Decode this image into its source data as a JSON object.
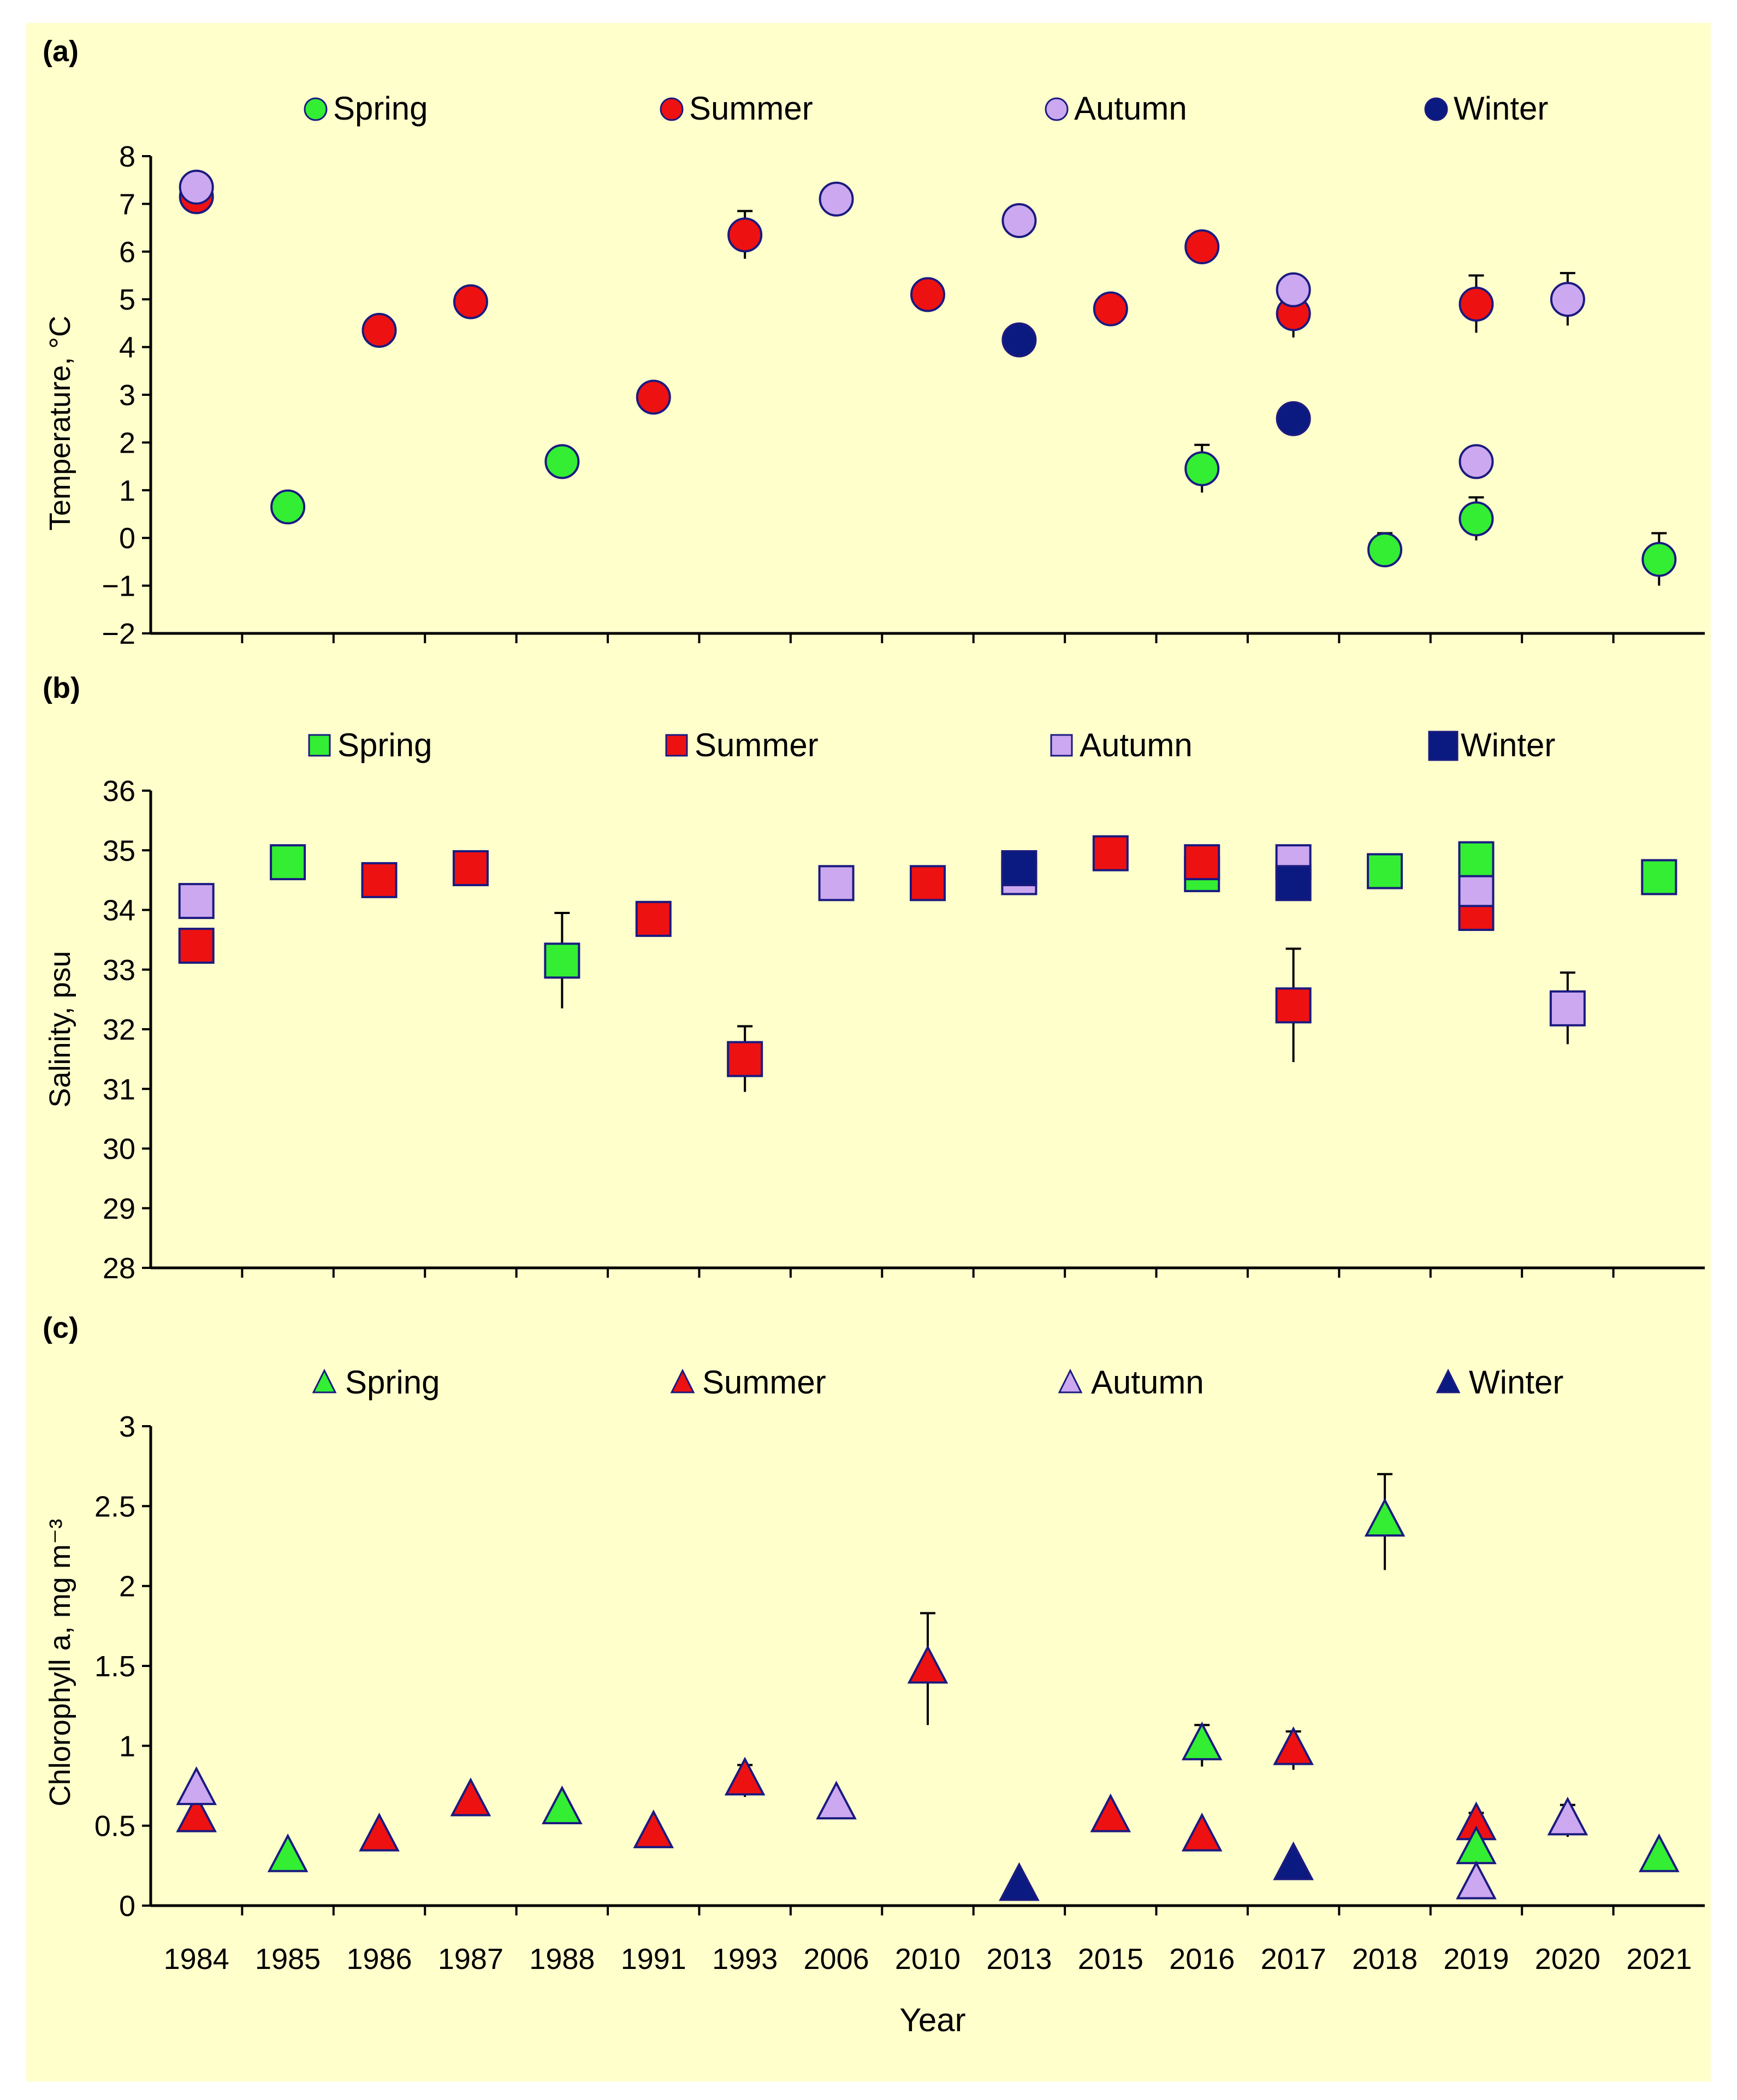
{
  "figure": {
    "background": "#FFFFCC",
    "year_labels": [
      "1984",
      "1985",
      "1986",
      "1987",
      "1988",
      "1991",
      "1993",
      "2006",
      "2010",
      "2013",
      "2015",
      "2016",
      "2017",
      "2018",
      "2019",
      "2020",
      "2021"
    ],
    "x_axis_title": "Year"
  },
  "seasons": {
    "spring": {
      "label": "Spring",
      "color": "#33EE33"
    },
    "summer": {
      "label": "Summer",
      "color": "#EE1111"
    },
    "autumn": {
      "label": "Autumn",
      "color": "#CCA8F0"
    },
    "winter": {
      "label": "Winter",
      "color": "#0A1A80"
    }
  },
  "chart_data": [
    {
      "panel": "(a)",
      "type": "scatter",
      "marker": "circle",
      "ylabel": "Temperature, °C",
      "ylim": [
        -2,
        8
      ],
      "yticks": [
        "−2",
        "−1",
        "0",
        "1",
        "2",
        "3",
        "4",
        "5",
        "6",
        "7",
        "8"
      ],
      "categories": [
        "1984",
        "1985",
        "1986",
        "1987",
        "1988",
        "1991",
        "1993",
        "2006",
        "2010",
        "2013",
        "2015",
        "2016",
        "2017",
        "2018",
        "2019",
        "2020",
        "2021"
      ],
      "points": [
        {
          "season": "summer",
          "x": 0,
          "y": 7.15
        },
        {
          "season": "autumn",
          "x": 0,
          "y": 7.35
        },
        {
          "season": "spring",
          "x": 1,
          "y": 0.65
        },
        {
          "season": "summer",
          "x": 2,
          "y": 4.35
        },
        {
          "season": "summer",
          "x": 3,
          "y": 4.95
        },
        {
          "season": "spring",
          "x": 4,
          "y": 1.6
        },
        {
          "season": "summer",
          "x": 5,
          "y": 2.95
        },
        {
          "season": "summer",
          "x": 6,
          "y": 6.35,
          "err": 0.5
        },
        {
          "season": "autumn",
          "x": 7,
          "y": 7.1
        },
        {
          "season": "summer",
          "x": 8,
          "y": 5.1
        },
        {
          "season": "autumn",
          "x": 9,
          "y": 6.65
        },
        {
          "season": "winter",
          "x": 9,
          "y": 4.15
        },
        {
          "season": "summer",
          "x": 10,
          "y": 4.8
        },
        {
          "season": "summer",
          "x": 11,
          "y": 6.1
        },
        {
          "season": "spring",
          "x": 11,
          "y": 1.45,
          "err": 0.5
        },
        {
          "season": "summer",
          "x": 12,
          "y": 4.7,
          "err": 0.5
        },
        {
          "season": "autumn",
          "x": 12,
          "y": 5.2
        },
        {
          "season": "winter",
          "x": 12,
          "y": 2.5
        },
        {
          "season": "spring",
          "x": 13,
          "y": -0.25,
          "err": 0.35
        },
        {
          "season": "summer",
          "x": 14,
          "y": 4.9,
          "err": 0.6
        },
        {
          "season": "autumn",
          "x": 14,
          "y": 1.6
        },
        {
          "season": "spring",
          "x": 14,
          "y": 0.4,
          "err": 0.45
        },
        {
          "season": "autumn",
          "x": 15,
          "y": 5.0,
          "err": 0.55
        },
        {
          "season": "spring",
          "x": 16,
          "y": -0.45,
          "err": 0.55
        }
      ]
    },
    {
      "panel": "(b)",
      "type": "scatter",
      "marker": "square",
      "ylabel": "Salinity, psu",
      "ylim": [
        28,
        36
      ],
      "yticks": [
        "28",
        "29",
        "30",
        "31",
        "32",
        "33",
        "34",
        "35",
        "36"
      ],
      "categories": [
        "1984",
        "1985",
        "1986",
        "1987",
        "1988",
        "1991",
        "1993",
        "2006",
        "2010",
        "2013",
        "2015",
        "2016",
        "2017",
        "2018",
        "2019",
        "2020",
        "2021"
      ],
      "points": [
        {
          "season": "autumn",
          "x": 0,
          "y": 34.15
        },
        {
          "season": "summer",
          "x": 0,
          "y": 33.4
        },
        {
          "season": "spring",
          "x": 1,
          "y": 34.8
        },
        {
          "season": "summer",
          "x": 2,
          "y": 34.5
        },
        {
          "season": "summer",
          "x": 3,
          "y": 34.7
        },
        {
          "season": "spring",
          "x": 4,
          "y": 33.15,
          "err": 0.8
        },
        {
          "season": "summer",
          "x": 5,
          "y": 33.85
        },
        {
          "season": "summer",
          "x": 6,
          "y": 31.5,
          "err": 0.55
        },
        {
          "season": "autumn",
          "x": 7,
          "y": 34.45
        },
        {
          "season": "summer",
          "x": 8,
          "y": 34.45
        },
        {
          "season": "autumn",
          "x": 9,
          "y": 34.55
        },
        {
          "season": "winter",
          "x": 9,
          "y": 34.7
        },
        {
          "season": "summer",
          "x": 10,
          "y": 34.95
        },
        {
          "season": "spring",
          "x": 11,
          "y": 34.6
        },
        {
          "season": "summer",
          "x": 11,
          "y": 34.8
        },
        {
          "season": "autumn",
          "x": 12,
          "y": 34.8
        },
        {
          "season": "winter",
          "x": 12,
          "y": 34.45
        },
        {
          "season": "summer",
          "x": 12,
          "y": 32.4,
          "err": 0.95
        },
        {
          "season": "spring",
          "x": 13,
          "y": 34.65
        },
        {
          "season": "summer",
          "x": 14,
          "y": 33.95
        },
        {
          "season": "autumn",
          "x": 14,
          "y": 34.35
        },
        {
          "season": "spring",
          "x": 14,
          "y": 34.85
        },
        {
          "season": "autumn",
          "x": 15,
          "y": 32.35,
          "err": 0.6
        },
        {
          "season": "spring",
          "x": 16,
          "y": 34.55
        }
      ]
    },
    {
      "panel": "(c)",
      "type": "scatter",
      "marker": "triangle",
      "ylabel": "Chlorophyll a, mg m⁻³",
      "ylim": [
        0,
        3
      ],
      "yticks": [
        "0",
        "0.5",
        "1",
        "1.5",
        "2",
        "2.5",
        "3"
      ],
      "categories": [
        "1984",
        "1985",
        "1986",
        "1987",
        "1988",
        "1991",
        "1993",
        "2006",
        "2010",
        "2013",
        "2015",
        "2016",
        "2017",
        "2018",
        "2019",
        "2020",
        "2021"
      ],
      "points": [
        {
          "season": "summer",
          "x": 0,
          "y": 0.55
        },
        {
          "season": "autumn",
          "x": 0,
          "y": 0.72
        },
        {
          "season": "spring",
          "x": 1,
          "y": 0.3
        },
        {
          "season": "summer",
          "x": 2,
          "y": 0.43
        },
        {
          "season": "summer",
          "x": 3,
          "y": 0.65
        },
        {
          "season": "spring",
          "x": 4,
          "y": 0.6
        },
        {
          "season": "summer",
          "x": 5,
          "y": 0.45
        },
        {
          "season": "summer",
          "x": 6,
          "y": 0.78,
          "err": 0.1
        },
        {
          "season": "autumn",
          "x": 7,
          "y": 0.63
        },
        {
          "season": "summer",
          "x": 8,
          "y": 1.48,
          "err": 0.35
        },
        {
          "season": "winter",
          "x": 9,
          "y": 0.12
        },
        {
          "season": "summer",
          "x": 10,
          "y": 0.55
        },
        {
          "season": "spring",
          "x": 11,
          "y": 1.0,
          "err": 0.13
        },
        {
          "season": "summer",
          "x": 11,
          "y": 0.43
        },
        {
          "season": "summer",
          "x": 12,
          "y": 0.97,
          "err": 0.12
        },
        {
          "season": "winter",
          "x": 12,
          "y": 0.25
        },
        {
          "season": "spring",
          "x": 13,
          "y": 2.4,
          "err": 0.3
        },
        {
          "season": "summer",
          "x": 14,
          "y": 0.5,
          "err": 0.08
        },
        {
          "season": "spring",
          "x": 14,
          "y": 0.35
        },
        {
          "season": "autumn",
          "x": 14,
          "y": 0.13
        },
        {
          "season": "autumn",
          "x": 15,
          "y": 0.53,
          "err": 0.1
        },
        {
          "season": "spring",
          "x": 16,
          "y": 0.3
        }
      ]
    }
  ]
}
